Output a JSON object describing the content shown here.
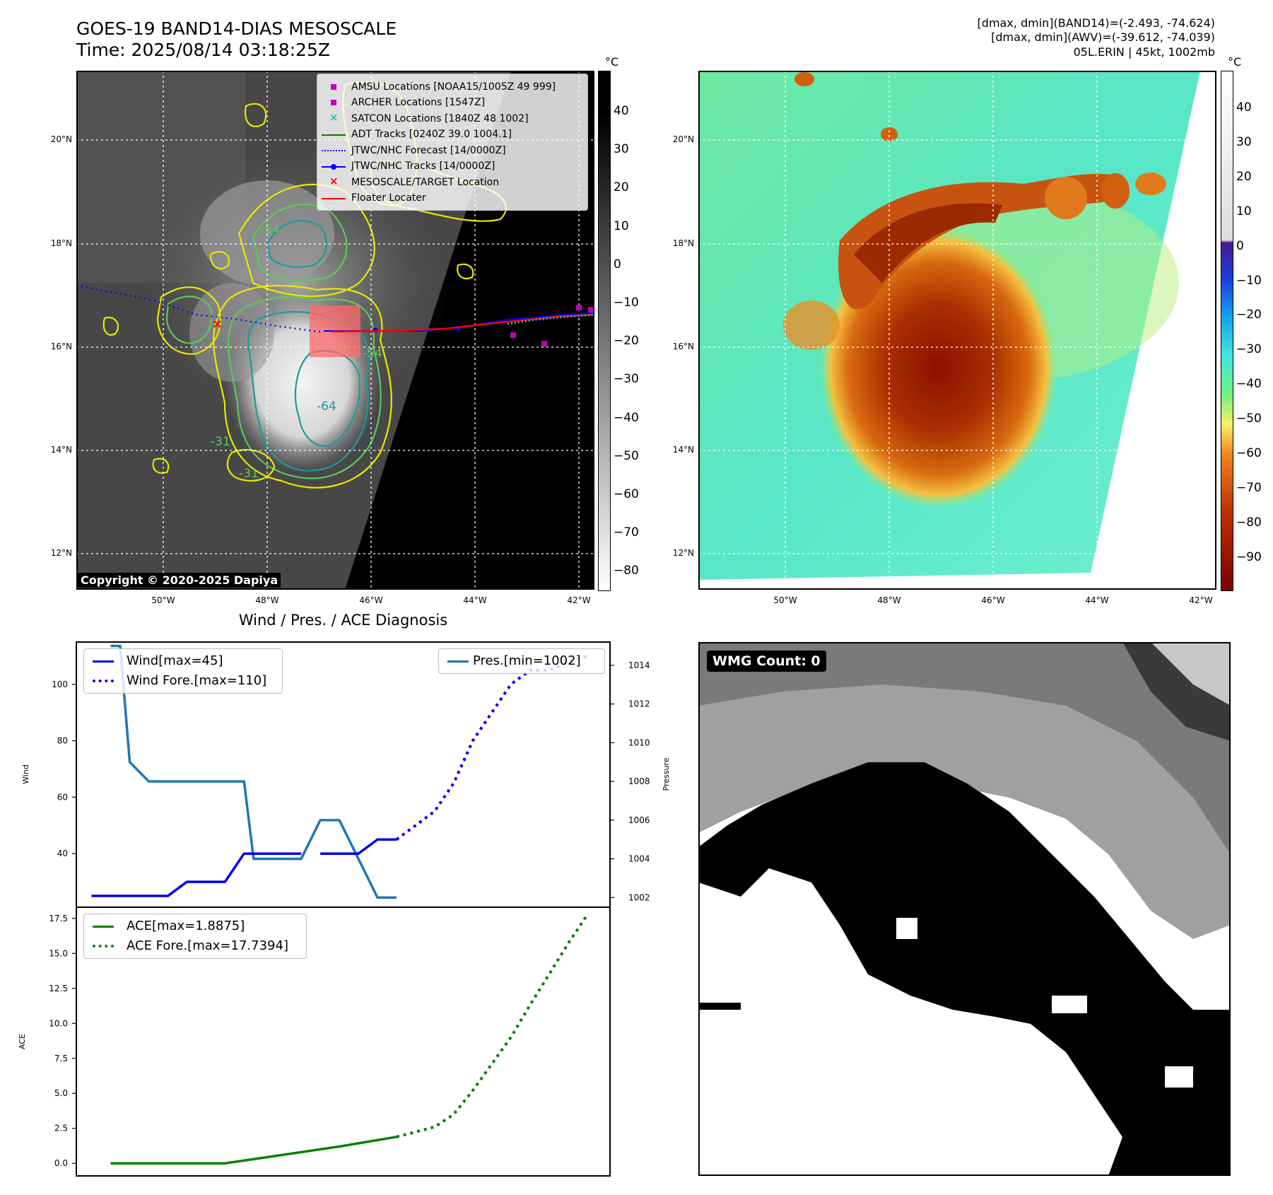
{
  "header": {
    "title_line1": "GOES-19 BAND14-DIAS MESOSCALE",
    "title_line2": "Time: 2025/08/14 03:18:25Z",
    "info_line1": "[dmax, dmin](BAND14)=(-2.493, -74.624)",
    "info_line2": "[dmax, dmin](AWV)=(-39.612, -74.039)",
    "info_line3": "05L.ERIN | 45kt, 1002mb"
  },
  "map_axes": {
    "lat_ticks": [
      "20°N",
      "18°N",
      "16°N",
      "14°N",
      "12°N"
    ],
    "lon_ticks": [
      "50°W",
      "48°W",
      "46°W",
      "44°W",
      "42°W"
    ]
  },
  "ir_panel": {
    "legend": [
      {
        "label": "AMSU Locations [NOAA15/1005Z 49 999]",
        "marker": "square",
        "color": "#c000c0"
      },
      {
        "label": "ARCHER Locations [1547Z]",
        "marker": "square",
        "color": "#c000c0"
      },
      {
        "label": "SATCON Locations [1840Z 48 1002]",
        "marker": "x",
        "color": "#20c0c0"
      },
      {
        "label": "ADT Tracks [0240Z 39.0 1004.1]",
        "marker": "line",
        "color": "#008000"
      },
      {
        "label": "JTWC/NHC Forecast [14/0000Z]",
        "marker": "dotted",
        "color": "#0000ff"
      },
      {
        "label": "JTWC/NHC Tracks [14/0000Z]",
        "marker": "line-dot",
        "color": "#0000ff"
      },
      {
        "label": "MESOSCALE/TARGET Location",
        "marker": "x",
        "color": "#ff0000"
      },
      {
        "label": "Floater Locater",
        "marker": "line",
        "color": "#ff0000"
      }
    ],
    "contour_labels": [
      "-64",
      "-54",
      "-31",
      "-31",
      "-54"
    ],
    "copyright": "Copyright © 2020-2025 Dapiya",
    "colorbar": {
      "unit": "°C",
      "ticks": [
        "40",
        "30",
        "20",
        "10",
        "0",
        "−10",
        "−20",
        "−30",
        "−40",
        "−50",
        "−60",
        "−70",
        "−80"
      ]
    }
  },
  "awv_panel": {
    "colorbar": {
      "unit": "°C",
      "ticks": [
        "40",
        "30",
        "20",
        "10",
        "0",
        "−10",
        "−20",
        "−30",
        "−40",
        "−50",
        "−60",
        "−70",
        "−80",
        "−90"
      ]
    }
  },
  "diag": {
    "title": "Wind / Pres. / ACE Diagnosis",
    "wind_axis_label": "Wind",
    "pressure_axis_label": "Pressure",
    "ace_axis_label": "ACE",
    "legend_wind": "Wind[max=45]",
    "legend_wind_fore": "Wind Fore.[max=110]",
    "legend_pres": "Pres.[min=1002]",
    "legend_ace": "ACE[max=1.8875]",
    "legend_ace_fore": "ACE Fore.[max=17.7394]"
  },
  "wmg_panel": {
    "label": "WMG Count: 0"
  },
  "colors": {
    "wind": "#0000ee",
    "pressure": "#1f77b4",
    "ace": "#008000",
    "floater": "#ff0000"
  },
  "chart_data": [
    {
      "type": "line",
      "title": "Wind / Pres. / ACE Diagnosis",
      "ylabel": "Wind",
      "ylim": [
        21,
        115
      ],
      "y_ticks": [
        40,
        60,
        80,
        100
      ],
      "series": [
        {
          "name": "Wind[max=45]",
          "x": [
            0,
            1,
            2,
            3,
            4,
            5,
            6,
            7,
            8,
            9,
            10,
            11
          ],
          "values": [
            25,
            25,
            25,
            25,
            25,
            30,
            30,
            30,
            40,
            40,
            40,
            40
          ]
        },
        {
          "name": "Wind[max=45] cont.",
          "x": [
            12,
            13,
            14,
            15,
            16
          ],
          "values": [
            40,
            40,
            40,
            45,
            45
          ]
        },
        {
          "name": "Wind Fore.[max=110]",
          "x": [
            16,
            17,
            18,
            19,
            20,
            21,
            22,
            23,
            24,
            25,
            26
          ],
          "values": [
            45,
            50,
            55,
            65,
            80,
            90,
            100,
            105,
            105,
            108,
            110
          ]
        }
      ]
    },
    {
      "type": "line",
      "ylabel": "Pressure",
      "ylim": [
        1001.5,
        1015.2
      ],
      "y_ticks": [
        1002,
        1004,
        1006,
        1008,
        1010,
        1012,
        1014
      ],
      "series": [
        {
          "name": "Pres.[min=1002]",
          "x": [
            1,
            1.5,
            2,
            3,
            4,
            5,
            6,
            7,
            8,
            8.5,
            9,
            10,
            11,
            12,
            13,
            14,
            15,
            16
          ],
          "values": [
            1015,
            1015,
            1009,
            1008,
            1008,
            1008,
            1008,
            1008,
            1008,
            1004,
            1004,
            1004,
            1004,
            1006,
            1006,
            1004,
            1002,
            1002
          ]
        }
      ]
    },
    {
      "type": "line",
      "ylabel": "ACE",
      "ylim": [
        -0.9,
        18.3
      ],
      "y_ticks": [
        0.0,
        2.5,
        5.0,
        7.5,
        10.0,
        12.5,
        15.0,
        17.5
      ],
      "series": [
        {
          "name": "ACE[max=1.8875]",
          "x": [
            1,
            7,
            13,
            16
          ],
          "values": [
            0,
            0,
            1.2,
            1.8875
          ]
        },
        {
          "name": "ACE Fore.[max=17.7394]",
          "x": [
            16,
            18,
            19,
            20,
            21,
            22,
            23,
            24,
            25,
            26
          ],
          "values": [
            1.8875,
            2.6,
            3.5,
            5.2,
            7.1,
            9.0,
            11.3,
            13.5,
            15.7,
            17.7394
          ]
        }
      ]
    }
  ]
}
